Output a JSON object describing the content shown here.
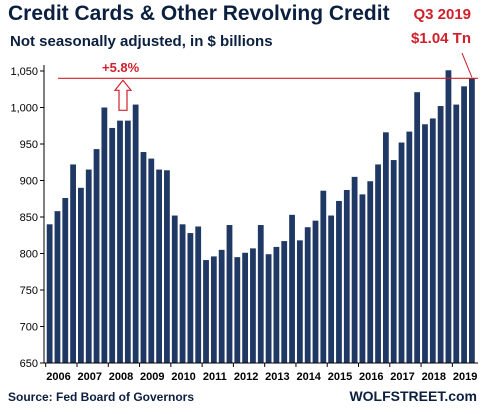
{
  "header": {
    "title": "Credit Cards & Other Revolving Credit",
    "subtitle": "Not seasonally adjusted, in $ billions",
    "note_line1": "Q3 2019",
    "note_line2": "$1.04 Tn"
  },
  "footer": {
    "source": "Source: Fed Board of Governors",
    "brand": "WOLFSTREET.com"
  },
  "colors": {
    "bar": "#1f3864",
    "accent": "#d0202b",
    "text": "#0b1f3f"
  },
  "chart_data": {
    "type": "bar",
    "title": "Credit Cards & Other Revolving Credit",
    "subtitle": "Not seasonally adjusted, in $ billions",
    "xlabel": "",
    "ylabel": "",
    "ylim": [
      650,
      1050
    ],
    "yticks": [
      650,
      700,
      750,
      800,
      850,
      900,
      950,
      1000,
      1050
    ],
    "ytick_labels": [
      "650",
      "700",
      "750",
      "800",
      "850",
      "900",
      "950",
      "1,000",
      "1,050"
    ],
    "xtick_labels": [
      "2006",
      "2007",
      "2008",
      "2009",
      "2010",
      "2011",
      "2012",
      "2013",
      "2014",
      "2015",
      "2016",
      "2017",
      "2018",
      "2019"
    ],
    "grid": false,
    "legend": "none",
    "categories": [
      "2006 Q1",
      "2006 Q2",
      "2006 Q3",
      "2006 Q4",
      "2007 Q1",
      "2007 Q2",
      "2007 Q3",
      "2007 Q4",
      "2008 Q1",
      "2008 Q2",
      "2008 Q3",
      "2008 Q4",
      "2009 Q1",
      "2009 Q2",
      "2009 Q3",
      "2009 Q4",
      "2010 Q1",
      "2010 Q2",
      "2010 Q3",
      "2010 Q4",
      "2011 Q1",
      "2011 Q2",
      "2011 Q3",
      "2011 Q4",
      "2012 Q1",
      "2012 Q2",
      "2012 Q3",
      "2012 Q4",
      "2013 Q1",
      "2013 Q2",
      "2013 Q3",
      "2013 Q4",
      "2014 Q1",
      "2014 Q2",
      "2014 Q3",
      "2014 Q4",
      "2015 Q1",
      "2015 Q2",
      "2015 Q3",
      "2015 Q4",
      "2016 Q1",
      "2016 Q2",
      "2016 Q3",
      "2016 Q4",
      "2017 Q1",
      "2017 Q2",
      "2017 Q3",
      "2017 Q4",
      "2018 Q1",
      "2018 Q2",
      "2018 Q3",
      "2018 Q4",
      "2019 Q1",
      "2019 Q2",
      "2019 Q3"
    ],
    "values": [
      840,
      858,
      876,
      922,
      890,
      915,
      943,
      1000,
      972,
      982,
      982,
      1004,
      939,
      930,
      915,
      914,
      852,
      840,
      828,
      837,
      791,
      796,
      805,
      839,
      795,
      801,
      807,
      839,
      799,
      809,
      817,
      853,
      818,
      836,
      845,
      886,
      852,
      872,
      887,
      905,
      881,
      899,
      922,
      966,
      928,
      952,
      967,
      1021,
      977,
      985,
      1002,
      1051,
      1004,
      1029,
      1040
    ],
    "reference_line": {
      "value": 1040,
      "label": "+5.8%"
    }
  }
}
